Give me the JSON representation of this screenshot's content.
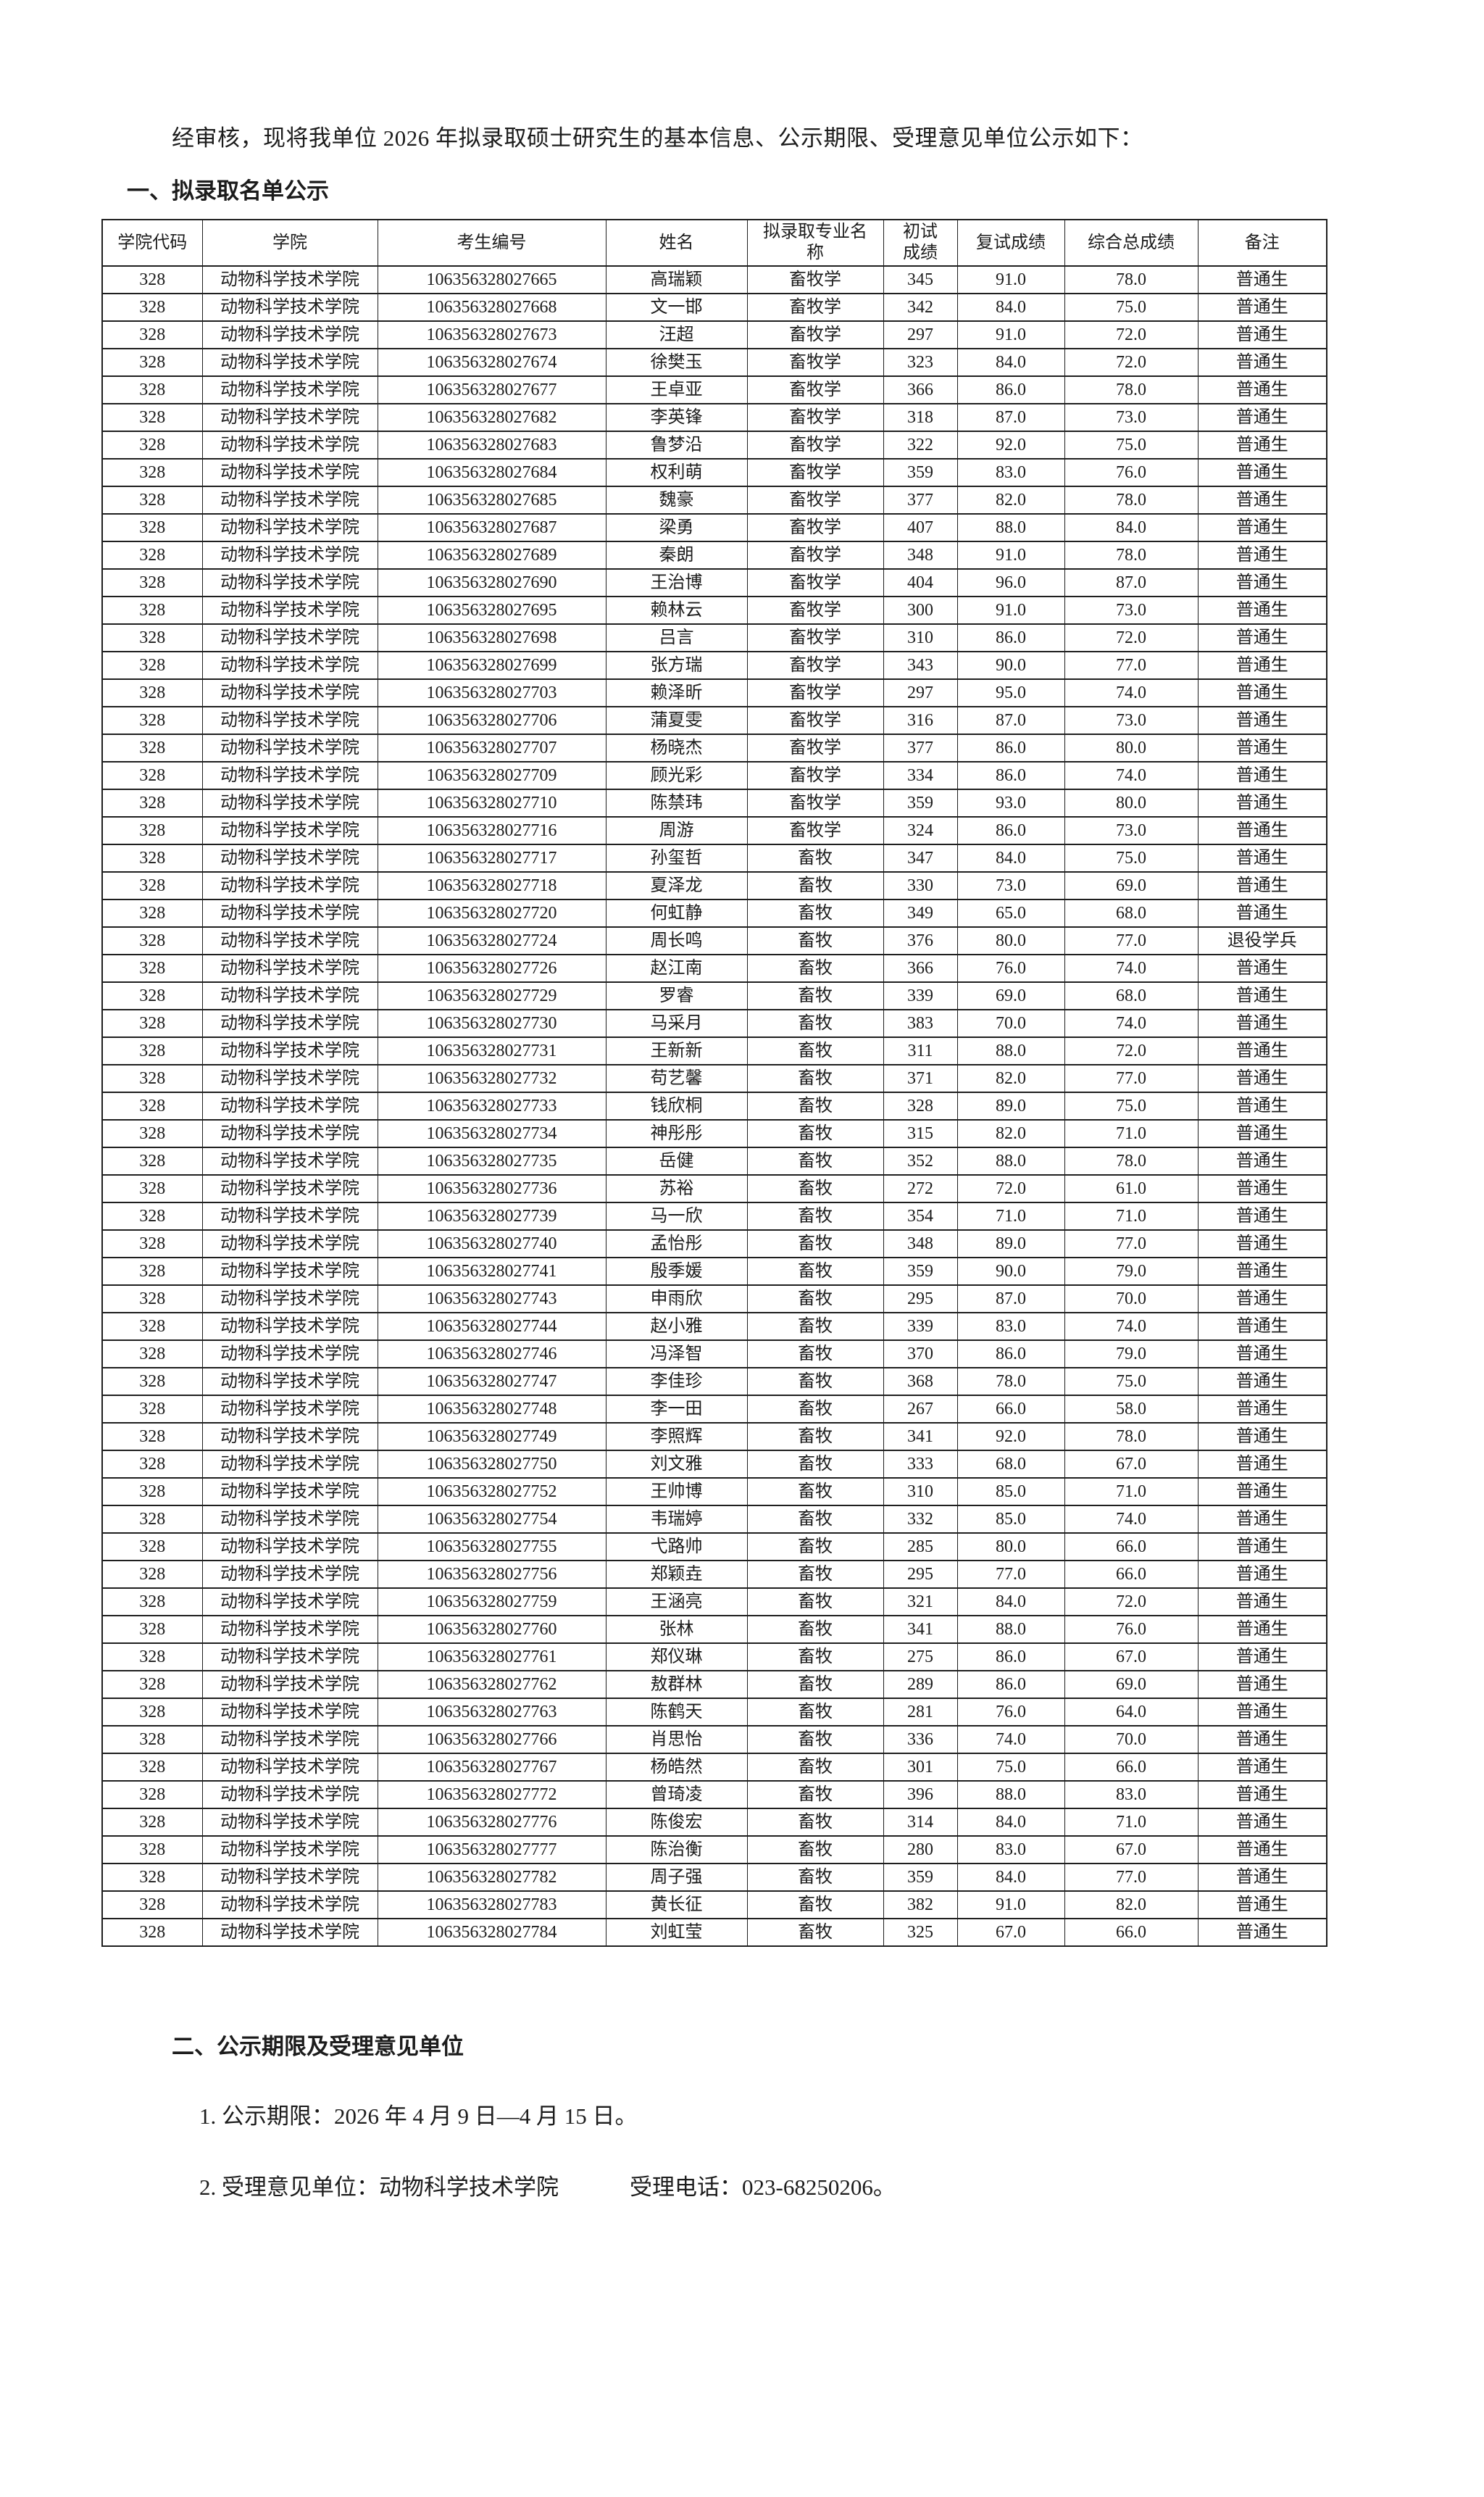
{
  "intro": "经审核，现将我单位 2026 年拟录取硕士研究生的基本信息、公示期限、受理意见单位公示如下：",
  "section1": {
    "title": "一、拟录取名单公示"
  },
  "table": {
    "headers": [
      "学院代码",
      "学院",
      "考生编号",
      "姓名",
      "拟录取专业名称",
      "初试成绩",
      "复试成绩",
      "综合总成绩",
      "备注"
    ],
    "rows": [
      [
        "328",
        "动物科学技术学院",
        "106356328027665",
        "高瑞颖",
        "畜牧学",
        "345",
        "91.0",
        "78.0",
        "普通生"
      ],
      [
        "328",
        "动物科学技术学院",
        "106356328027668",
        "文一邯",
        "畜牧学",
        "342",
        "84.0",
        "75.0",
        "普通生"
      ],
      [
        "328",
        "动物科学技术学院",
        "106356328027673",
        "汪超",
        "畜牧学",
        "297",
        "91.0",
        "72.0",
        "普通生"
      ],
      [
        "328",
        "动物科学技术学院",
        "106356328027674",
        "徐樊玉",
        "畜牧学",
        "323",
        "84.0",
        "72.0",
        "普通生"
      ],
      [
        "328",
        "动物科学技术学院",
        "106356328027677",
        "王卓亚",
        "畜牧学",
        "366",
        "86.0",
        "78.0",
        "普通生"
      ],
      [
        "328",
        "动物科学技术学院",
        "106356328027682",
        "李英锋",
        "畜牧学",
        "318",
        "87.0",
        "73.0",
        "普通生"
      ],
      [
        "328",
        "动物科学技术学院",
        "106356328027683",
        "鲁梦沿",
        "畜牧学",
        "322",
        "92.0",
        "75.0",
        "普通生"
      ],
      [
        "328",
        "动物科学技术学院",
        "106356328027684",
        "权利萌",
        "畜牧学",
        "359",
        "83.0",
        "76.0",
        "普通生"
      ],
      [
        "328",
        "动物科学技术学院",
        "106356328027685",
        "魏豪",
        "畜牧学",
        "377",
        "82.0",
        "78.0",
        "普通生"
      ],
      [
        "328",
        "动物科学技术学院",
        "106356328027687",
        "梁勇",
        "畜牧学",
        "407",
        "88.0",
        "84.0",
        "普通生"
      ],
      [
        "328",
        "动物科学技术学院",
        "106356328027689",
        "秦朗",
        "畜牧学",
        "348",
        "91.0",
        "78.0",
        "普通生"
      ],
      [
        "328",
        "动物科学技术学院",
        "106356328027690",
        "王治博",
        "畜牧学",
        "404",
        "96.0",
        "87.0",
        "普通生"
      ],
      [
        "328",
        "动物科学技术学院",
        "106356328027695",
        "赖林云",
        "畜牧学",
        "300",
        "91.0",
        "73.0",
        "普通生"
      ],
      [
        "328",
        "动物科学技术学院",
        "106356328027698",
        "吕言",
        "畜牧学",
        "310",
        "86.0",
        "72.0",
        "普通生"
      ],
      [
        "328",
        "动物科学技术学院",
        "106356328027699",
        "张方瑞",
        "畜牧学",
        "343",
        "90.0",
        "77.0",
        "普通生"
      ],
      [
        "328",
        "动物科学技术学院",
        "106356328027703",
        "赖泽昕",
        "畜牧学",
        "297",
        "95.0",
        "74.0",
        "普通生"
      ],
      [
        "328",
        "动物科学技术学院",
        "106356328027706",
        "蒲夏雯",
        "畜牧学",
        "316",
        "87.0",
        "73.0",
        "普通生"
      ],
      [
        "328",
        "动物科学技术学院",
        "106356328027707",
        "杨晓杰",
        "畜牧学",
        "377",
        "86.0",
        "80.0",
        "普通生"
      ],
      [
        "328",
        "动物科学技术学院",
        "106356328027709",
        "顾光彩",
        "畜牧学",
        "334",
        "86.0",
        "74.0",
        "普通生"
      ],
      [
        "328",
        "动物科学技术学院",
        "106356328027710",
        "陈禁玮",
        "畜牧学",
        "359",
        "93.0",
        "80.0",
        "普通生"
      ],
      [
        "328",
        "动物科学技术学院",
        "106356328027716",
        "周游",
        "畜牧学",
        "324",
        "86.0",
        "73.0",
        "普通生"
      ],
      [
        "328",
        "动物科学技术学院",
        "106356328027717",
        "孙玺哲",
        "畜牧",
        "347",
        "84.0",
        "75.0",
        "普通生"
      ],
      [
        "328",
        "动物科学技术学院",
        "106356328027718",
        "夏泽龙",
        "畜牧",
        "330",
        "73.0",
        "69.0",
        "普通生"
      ],
      [
        "328",
        "动物科学技术学院",
        "106356328027720",
        "何虹静",
        "畜牧",
        "349",
        "65.0",
        "68.0",
        "普通生"
      ],
      [
        "328",
        "动物科学技术学院",
        "106356328027724",
        "周长鸣",
        "畜牧",
        "376",
        "80.0",
        "77.0",
        "退役学兵"
      ],
      [
        "328",
        "动物科学技术学院",
        "106356328027726",
        "赵江南",
        "畜牧",
        "366",
        "76.0",
        "74.0",
        "普通生"
      ],
      [
        "328",
        "动物科学技术学院",
        "106356328027729",
        "罗睿",
        "畜牧",
        "339",
        "69.0",
        "68.0",
        "普通生"
      ],
      [
        "328",
        "动物科学技术学院",
        "106356328027730",
        "马采月",
        "畜牧",
        "383",
        "70.0",
        "74.0",
        "普通生"
      ],
      [
        "328",
        "动物科学技术学院",
        "106356328027731",
        "王新新",
        "畜牧",
        "311",
        "88.0",
        "72.0",
        "普通生"
      ],
      [
        "328",
        "动物科学技术学院",
        "106356328027732",
        "苟艺馨",
        "畜牧",
        "371",
        "82.0",
        "77.0",
        "普通生"
      ],
      [
        "328",
        "动物科学技术学院",
        "106356328027733",
        "钱欣桐",
        "畜牧",
        "328",
        "89.0",
        "75.0",
        "普通生"
      ],
      [
        "328",
        "动物科学技术学院",
        "106356328027734",
        "神彤彤",
        "畜牧",
        "315",
        "82.0",
        "71.0",
        "普通生"
      ],
      [
        "328",
        "动物科学技术学院",
        "106356328027735",
        "岳健",
        "畜牧",
        "352",
        "88.0",
        "78.0",
        "普通生"
      ],
      [
        "328",
        "动物科学技术学院",
        "106356328027736",
        "苏裕",
        "畜牧",
        "272",
        "72.0",
        "61.0",
        "普通生"
      ],
      [
        "328",
        "动物科学技术学院",
        "106356328027739",
        "马一欣",
        "畜牧",
        "354",
        "71.0",
        "71.0",
        "普通生"
      ],
      [
        "328",
        "动物科学技术学院",
        "106356328027740",
        "孟怡彤",
        "畜牧",
        "348",
        "89.0",
        "77.0",
        "普通生"
      ],
      [
        "328",
        "动物科学技术学院",
        "106356328027741",
        "殷季媛",
        "畜牧",
        "359",
        "90.0",
        "79.0",
        "普通生"
      ],
      [
        "328",
        "动物科学技术学院",
        "106356328027743",
        "申雨欣",
        "畜牧",
        "295",
        "87.0",
        "70.0",
        "普通生"
      ],
      [
        "328",
        "动物科学技术学院",
        "106356328027744",
        "赵小雅",
        "畜牧",
        "339",
        "83.0",
        "74.0",
        "普通生"
      ],
      [
        "328",
        "动物科学技术学院",
        "106356328027746",
        "冯泽智",
        "畜牧",
        "370",
        "86.0",
        "79.0",
        "普通生"
      ],
      [
        "328",
        "动物科学技术学院",
        "106356328027747",
        "李佳珍",
        "畜牧",
        "368",
        "78.0",
        "75.0",
        "普通生"
      ],
      [
        "328",
        "动物科学技术学院",
        "106356328027748",
        "李一田",
        "畜牧",
        "267",
        "66.0",
        "58.0",
        "普通生"
      ],
      [
        "328",
        "动物科学技术学院",
        "106356328027749",
        "李照辉",
        "畜牧",
        "341",
        "92.0",
        "78.0",
        "普通生"
      ],
      [
        "328",
        "动物科学技术学院",
        "106356328027750",
        "刘文雅",
        "畜牧",
        "333",
        "68.0",
        "67.0",
        "普通生"
      ],
      [
        "328",
        "动物科学技术学院",
        "106356328027752",
        "王帅博",
        "畜牧",
        "310",
        "85.0",
        "71.0",
        "普通生"
      ],
      [
        "328",
        "动物科学技术学院",
        "106356328027754",
        "韦瑞婷",
        "畜牧",
        "332",
        "85.0",
        "74.0",
        "普通生"
      ],
      [
        "328",
        "动物科学技术学院",
        "106356328027755",
        "弋路帅",
        "畜牧",
        "285",
        "80.0",
        "66.0",
        "普通生"
      ],
      [
        "328",
        "动物科学技术学院",
        "106356328027756",
        "郑颖垚",
        "畜牧",
        "295",
        "77.0",
        "66.0",
        "普通生"
      ],
      [
        "328",
        "动物科学技术学院",
        "106356328027759",
        "王涵亮",
        "畜牧",
        "321",
        "84.0",
        "72.0",
        "普通生"
      ],
      [
        "328",
        "动物科学技术学院",
        "106356328027760",
        "张林",
        "畜牧",
        "341",
        "88.0",
        "76.0",
        "普通生"
      ],
      [
        "328",
        "动物科学技术学院",
        "106356328027761",
        "郑仪琳",
        "畜牧",
        "275",
        "86.0",
        "67.0",
        "普通生"
      ],
      [
        "328",
        "动物科学技术学院",
        "106356328027762",
        "敖群林",
        "畜牧",
        "289",
        "86.0",
        "69.0",
        "普通生"
      ],
      [
        "328",
        "动物科学技术学院",
        "106356328027763",
        "陈鹤天",
        "畜牧",
        "281",
        "76.0",
        "64.0",
        "普通生"
      ],
      [
        "328",
        "动物科学技术学院",
        "106356328027766",
        "肖思怡",
        "畜牧",
        "336",
        "74.0",
        "70.0",
        "普通生"
      ],
      [
        "328",
        "动物科学技术学院",
        "106356328027767",
        "杨皓然",
        "畜牧",
        "301",
        "75.0",
        "66.0",
        "普通生"
      ],
      [
        "328",
        "动物科学技术学院",
        "106356328027772",
        "曾琦凌",
        "畜牧",
        "396",
        "88.0",
        "83.0",
        "普通生"
      ],
      [
        "328",
        "动物科学技术学院",
        "106356328027776",
        "陈俊宏",
        "畜牧",
        "314",
        "84.0",
        "71.0",
        "普通生"
      ],
      [
        "328",
        "动物科学技术学院",
        "106356328027777",
        "陈治衡",
        "畜牧",
        "280",
        "83.0",
        "67.0",
        "普通生"
      ],
      [
        "328",
        "动物科学技术学院",
        "106356328027782",
        "周子强",
        "畜牧",
        "359",
        "84.0",
        "77.0",
        "普通生"
      ],
      [
        "328",
        "动物科学技术学院",
        "106356328027783",
        "黄长征",
        "畜牧",
        "382",
        "91.0",
        "82.0",
        "普通生"
      ],
      [
        "328",
        "动物科学技术学院",
        "106356328027784",
        "刘虹莹",
        "畜牧",
        "325",
        "67.0",
        "66.0",
        "普通生"
      ]
    ]
  },
  "section2": {
    "title": "二、公示期限及受理意见单位",
    "item1": "1. 公示期限：2026 年 4 月 9 日—4 月 15 日。",
    "item2_unit": "2. 受理意见单位：动物科学技术学院",
    "item2_phone": "受理电话：023-68250206。"
  }
}
